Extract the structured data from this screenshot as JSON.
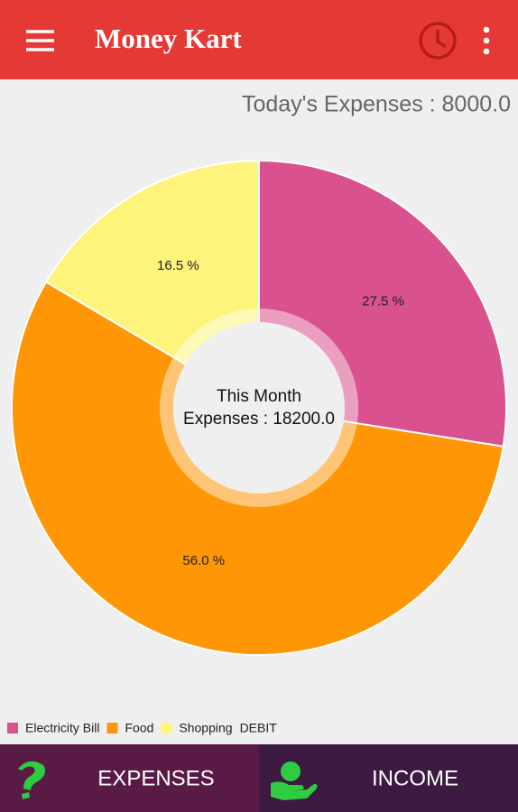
{
  "app_bar": {
    "title": "Money Kart"
  },
  "summary": {
    "today": "Today's Expenses : 8000.0"
  },
  "chart_data": {
    "type": "pie",
    "categories": [
      "Electricity Bill",
      "Food",
      "Shopping"
    ],
    "values": [
      27.5,
      56.0,
      16.5
    ],
    "value_labels": [
      "27.5 %",
      "56.0 %",
      "16.5 %"
    ],
    "colors": [
      "#d9518f",
      "#fe9606",
      "#fef47c"
    ],
    "series_label": "DEBIT",
    "center_text": [
      "This Month",
      "Expenses : 18200.0"
    ]
  },
  "bottom_nav": {
    "tabs": [
      "EXPENSES",
      "INCOME"
    ]
  }
}
